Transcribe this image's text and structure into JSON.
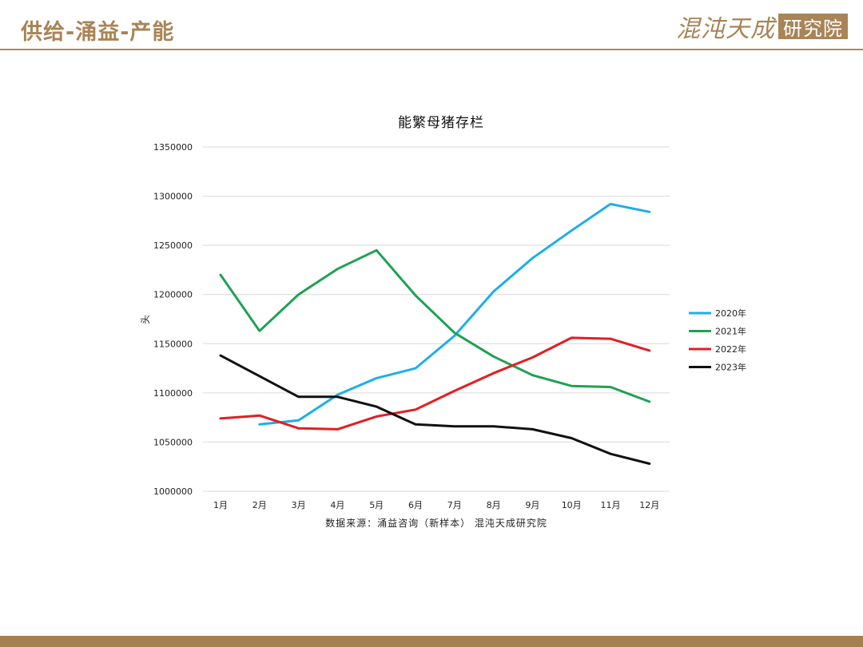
{
  "header": {
    "title": "供给-涌益-产能",
    "logo_text": "混沌天成",
    "logo_box_text": "研究院"
  },
  "colors": {
    "brand": "#a88456",
    "footer": "#a58051"
  },
  "chart_data": {
    "type": "line",
    "title": "能繁母猪存栏",
    "xlabel": "",
    "ylabel": "头",
    "categories": [
      "1月",
      "2月",
      "3月",
      "4月",
      "5月",
      "6月",
      "7月",
      "8月",
      "9月",
      "10月",
      "11月",
      "12月"
    ],
    "y_ticks": [
      "1000000",
      "1050000",
      "1100000",
      "1150000",
      "1200000",
      "1250000",
      "1300000",
      "1350000"
    ],
    "ylim": [
      1000000,
      1350000
    ],
    "grid": true,
    "legend_position": "right",
    "series": [
      {
        "name": "2020年",
        "color": "#1eaee8",
        "values": [
          null,
          1068000,
          1072000,
          1098000,
          1115000,
          1125000,
          1158000,
          1203000,
          1237000,
          1265000,
          1292000,
          1284000
        ]
      },
      {
        "name": "2021年",
        "color": "#1fa152",
        "values": [
          1220000,
          1163000,
          1200000,
          1226000,
          1245000,
          1199000,
          1161000,
          1137000,
          1118000,
          1107000,
          1106000,
          1091000
        ]
      },
      {
        "name": "2022年",
        "color": "#e31e24",
        "values": [
          1074000,
          1077000,
          1064000,
          1063000,
          1076000,
          1083000,
          1102000,
          1120000,
          1136000,
          1156000,
          1155000,
          1143000
        ]
      },
      {
        "name": "2023年",
        "color": "#111111",
        "values": [
          1138000,
          1117000,
          1096000,
          1096000,
          1086000,
          1068000,
          1066000,
          1066000,
          1063000,
          1054000,
          1038000,
          1028000
        ]
      }
    ],
    "source": "数据来源：涌益咨询（新样本） 混沌天成研究院"
  }
}
